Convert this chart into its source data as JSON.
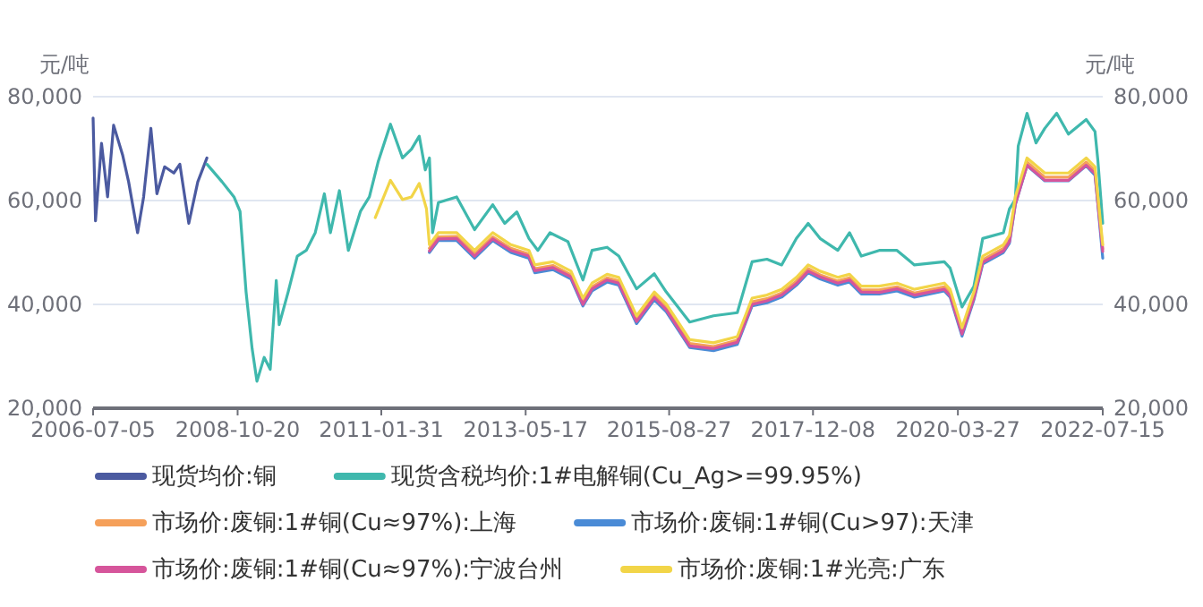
{
  "chart_data": {
    "type": "line",
    "ylabel": "元/吨",
    "y2label": "元/吨",
    "grid": "y",
    "legend": "bottom",
    "xlim": [
      "2006-07-05",
      "2022-07-15"
    ],
    "xticks": [
      "2006-07-05",
      "2008-10-20",
      "2011-01-31",
      "2013-05-17",
      "2015-08-27",
      "2017-12-08",
      "2020-03-27",
      "2022-07-15"
    ],
    "ylim": [
      20000,
      80000
    ],
    "yticks": [
      {
        "value": 20000,
        "label": "20,000"
      },
      {
        "value": 40000,
        "label": "40,000"
      },
      {
        "value": 60000,
        "label": "60,000"
      },
      {
        "value": 80000,
        "label": "80,000"
      }
    ],
    "y2lim": [
      20000,
      80000
    ],
    "y2ticks": [
      {
        "value": 20000,
        "label": "20,000"
      },
      {
        "value": 40000,
        "label": "40,000"
      },
      {
        "value": 60000,
        "label": "60,000"
      },
      {
        "value": 80000,
        "label": "80,000"
      }
    ],
    "series": [
      {
        "name": "现货均价:铜",
        "color": "#4b5aa0",
        "x": [
          "2006-07-05",
          "2006-07-19",
          "2006-08-23",
          "2006-09-27",
          "2006-11-01",
          "2006-12-23",
          "2007-01-27",
          "2007-03-20",
          "2007-04-24",
          "2007-06-05",
          "2007-07-10",
          "2007-08-24",
          "2007-10-16",
          "2007-11-20",
          "2008-01-11",
          "2008-03-03",
          "2008-04-25"
        ],
        "values": [
          75900,
          56100,
          71000,
          60700,
          74500,
          68800,
          63600,
          53800,
          60700,
          73900,
          61300,
          66500,
          65300,
          67000,
          55600,
          63600,
          68200
        ]
      },
      {
        "name": "现货含税均价:1#电解铜(Cu_Ag>=99.95%)",
        "color": "#3fb8ad",
        "x": [
          "2008-04-25",
          "2008-07-22",
          "2008-09-29",
          "2008-11-03",
          "2008-12-08",
          "2009-01-12",
          "2009-02-09",
          "2009-03-23",
          "2009-04-27",
          "2009-06-01",
          "2009-06-18",
          "2009-08-09",
          "2009-10-01",
          "2009-11-22",
          "2010-01-13",
          "2010-03-07",
          "2010-04-11",
          "2010-06-02",
          "2010-07-24",
          "2010-10-02",
          "2010-11-23",
          "2011-01-14",
          "2011-03-25",
          "2011-06-03",
          "2011-07-25",
          "2011-09-08",
          "2011-10-13",
          "2011-11-06",
          "2011-11-24",
          "2011-12-28",
          "2012-04-12",
          "2012-07-25",
          "2012-11-07",
          "2013-01-16",
          "2013-03-27",
          "2013-06-05",
          "2013-07-27",
          "2013-10-05",
          "2014-01-17",
          "2014-04-14",
          "2014-06-06",
          "2014-09-01",
          "2014-11-08",
          "2015-02-19",
          "2015-06-02",
          "2015-08-10",
          "2015-12-24",
          "2016-05-10",
          "2016-09-25",
          "2016-12-20",
          "2017-03-16",
          "2017-06-09",
          "2017-09-03",
          "2017-11-10",
          "2018-01-18",
          "2018-05-01",
          "2018-07-08",
          "2018-09-14",
          "2018-12-27",
          "2019-04-09",
          "2019-07-19",
          "2020-01-08",
          "2020-02-11",
          "2020-04-20",
          "2020-06-28",
          "2020-08-18",
          "2020-12-16",
          "2021-01-20",
          "2021-02-23",
          "2021-03-12",
          "2021-05-02",
          "2021-06-23",
          "2021-08-13",
          "2021-10-21",
          "2021-12-28",
          "2022-04-10",
          "2022-05-31",
          "2022-06-17",
          "2022-07-15"
        ],
        "values": [
          67000,
          63600,
          60700,
          57900,
          42400,
          31500,
          25200,
          29800,
          27500,
          44600,
          36100,
          42400,
          49300,
          50400,
          53800,
          61300,
          53800,
          61900,
          50400,
          57900,
          60700,
          67600,
          74700,
          68200,
          69900,
          72400,
          65900,
          68200,
          53800,
          59600,
          60700,
          54400,
          59200,
          55600,
          57800,
          52700,
          50400,
          53800,
          52100,
          44700,
          50400,
          51000,
          49300,
          43000,
          45900,
          42400,
          36600,
          37800,
          38400,
          48200,
          48700,
          47600,
          52700,
          55600,
          52700,
          50400,
          53800,
          49300,
          50400,
          50400,
          47600,
          48200,
          47000,
          39500,
          43500,
          52700,
          53800,
          58400,
          60200,
          70500,
          76800,
          71100,
          73900,
          76800,
          72800,
          75600,
          73300,
          67600,
          55600
        ]
      },
      {
        "name": "市场价:废铜:1#铜(Cu≈97%):上海",
        "color": "#f5a05a",
        "x": [
          "2011-11-06",
          "2011-12-28",
          "2012-04-12",
          "2012-07-25",
          "2012-11-07",
          "2013-02-20",
          "2013-06-05",
          "2013-07-09",
          "2013-10-22",
          "2014-02-04",
          "2014-04-14",
          "2014-06-06",
          "2014-09-01",
          "2014-11-08",
          "2015-02-19",
          "2015-06-02",
          "2015-08-10",
          "2015-12-24",
          "2016-05-10",
          "2016-09-25",
          "2016-12-20",
          "2017-03-16",
          "2017-06-09",
          "2017-09-03",
          "2017-11-10",
          "2018-01-18",
          "2018-05-01",
          "2018-07-08",
          "2018-09-14",
          "2018-12-27",
          "2019-04-09",
          "2019-07-19",
          "2020-01-08",
          "2020-02-11",
          "2020-04-20",
          "2020-06-28",
          "2020-08-18",
          "2020-12-16",
          "2021-01-20",
          "2021-02-23",
          "2021-05-02",
          "2021-08-13",
          "2021-12-28",
          "2022-04-10",
          "2022-05-31",
          "2022-06-17",
          "2022-07-15"
        ],
        "values": [
          50800,
          53000,
          53100,
          49700,
          53000,
          50800,
          49700,
          46900,
          47500,
          45700,
          40500,
          43400,
          45100,
          44500,
          37100,
          41700,
          39400,
          32500,
          31900,
          33100,
          40500,
          41100,
          42200,
          44500,
          46900,
          45700,
          44500,
          45100,
          42800,
          42800,
          43400,
          42200,
          43400,
          42200,
          34800,
          41700,
          48600,
          50800,
          52600,
          59900,
          67400,
          64500,
          64500,
          67400,
          65700,
          59900,
          50700
        ]
      },
      {
        "name": "市场价:废铜:1#铜(Cu>97):天津",
        "color": "#4a8bd6",
        "x": [
          "2011-11-06",
          "2011-12-28",
          "2012-04-12",
          "2012-07-25",
          "2012-11-07",
          "2013-02-20",
          "2013-06-05",
          "2013-07-09",
          "2013-10-22",
          "2014-02-04",
          "2014-04-14",
          "2014-06-06",
          "2014-09-01",
          "2014-11-08",
          "2015-02-19",
          "2015-06-02",
          "2015-08-10",
          "2015-12-24",
          "2016-05-10",
          "2016-09-25",
          "2016-12-20",
          "2017-03-16",
          "2017-06-09",
          "2017-09-03",
          "2017-11-10",
          "2018-01-18",
          "2018-05-01",
          "2018-07-08",
          "2018-09-14",
          "2018-12-27",
          "2019-04-09",
          "2019-07-19",
          "2020-01-08",
          "2020-02-11",
          "2020-04-20",
          "2020-06-28",
          "2020-08-18",
          "2020-12-16",
          "2021-01-20",
          "2021-02-23",
          "2021-05-02",
          "2021-08-13",
          "2021-12-28",
          "2022-04-10",
          "2022-05-31",
          "2022-06-17",
          "2022-07-15"
        ],
        "values": [
          50000,
          52300,
          52300,
          48900,
          52300,
          50000,
          48900,
          46100,
          46700,
          44900,
          39700,
          42600,
          44300,
          43700,
          36300,
          40900,
          38600,
          31700,
          31100,
          32300,
          39700,
          40300,
          41400,
          43700,
          46100,
          44900,
          43700,
          44300,
          42000,
          42000,
          42600,
          41400,
          42600,
          41400,
          33900,
          40900,
          47800,
          50000,
          51800,
          59200,
          66700,
          63800,
          63800,
          66700,
          64900,
          59200,
          48900
        ]
      },
      {
        "name": "市场价:废铜:1#铜(Cu≈97%):宁波台州",
        "color": "#d6559b",
        "x": [
          "2011-11-06",
          "2011-12-28",
          "2012-04-12",
          "2012-07-25",
          "2012-11-07",
          "2013-02-20",
          "2013-06-05",
          "2013-07-09",
          "2013-10-22",
          "2014-02-04",
          "2014-04-14",
          "2014-06-06",
          "2014-09-01",
          "2014-11-08",
          "2015-02-19",
          "2015-06-02",
          "2015-08-10",
          "2015-12-24",
          "2016-05-10",
          "2016-09-25",
          "2016-12-20",
          "2017-03-16",
          "2017-06-09",
          "2017-09-03",
          "2017-11-10",
          "2018-01-18",
          "2018-05-01",
          "2018-07-08",
          "2018-09-14",
          "2018-12-27",
          "2019-04-09",
          "2019-07-19",
          "2020-01-08",
          "2020-02-11",
          "2020-04-20",
          "2020-06-28",
          "2020-08-18",
          "2020-12-16",
          "2021-01-20",
          "2021-02-23",
          "2021-05-02",
          "2021-08-13",
          "2021-12-28",
          "2022-04-10",
          "2022-05-31",
          "2022-06-17",
          "2022-07-15"
        ],
        "values": [
          50300,
          52600,
          52700,
          49300,
          52600,
          50400,
          49300,
          46500,
          47100,
          45300,
          40000,
          43000,
          44700,
          44100,
          36700,
          41300,
          39000,
          32000,
          31500,
          32700,
          40000,
          40700,
          41800,
          44000,
          46400,
          45300,
          44100,
          44700,
          42400,
          42300,
          43000,
          41800,
          42900,
          41700,
          34300,
          41200,
          48100,
          50300,
          52100,
          59300,
          66800,
          63900,
          63900,
          66800,
          65200,
          59400,
          50200
        ]
      },
      {
        "name": "市场价:废铜:1#光亮:广东",
        "color": "#f2d548",
        "x": [
          "2010-12-27",
          "2011-03-25",
          "2011-06-03",
          "2011-07-25",
          "2011-09-08",
          "2011-10-20",
          "2011-11-06",
          "2011-12-28",
          "2012-04-12",
          "2012-07-25",
          "2012-11-07",
          "2013-02-20",
          "2013-06-05",
          "2013-07-09",
          "2013-10-22",
          "2014-02-04",
          "2014-04-14",
          "2014-06-06",
          "2014-09-01",
          "2014-11-08",
          "2015-02-19",
          "2015-06-02",
          "2015-08-10",
          "2015-12-24",
          "2016-05-10",
          "2016-09-25",
          "2016-12-20",
          "2017-03-16",
          "2017-06-09",
          "2017-09-03",
          "2017-11-10",
          "2018-01-18",
          "2018-05-01",
          "2018-07-08",
          "2018-09-14",
          "2018-12-27",
          "2019-04-09",
          "2019-07-19",
          "2020-01-08",
          "2020-02-11",
          "2020-04-20",
          "2020-06-28",
          "2020-08-18",
          "2020-12-16",
          "2021-01-20",
          "2021-02-23",
          "2021-05-02",
          "2021-08-13",
          "2021-12-28",
          "2022-04-10",
          "2022-05-31",
          "2022-06-17",
          "2022-07-15"
        ],
        "values": [
          56700,
          63900,
          60200,
          60700,
          63300,
          58400,
          51500,
          53800,
          53800,
          50400,
          53800,
          51500,
          50400,
          47600,
          48200,
          46400,
          41200,
          44100,
          45800,
          45200,
          37800,
          42400,
          40100,
          33200,
          32600,
          33800,
          41200,
          41800,
          42900,
          45200,
          47600,
          46400,
          45200,
          45800,
          43500,
          43500,
          44100,
          42900,
          44100,
          42900,
          35500,
          42400,
          49300,
          51500,
          53300,
          60700,
          68200,
          65300,
          65300,
          68200,
          66500,
          60700,
          51500
        ]
      }
    ]
  }
}
